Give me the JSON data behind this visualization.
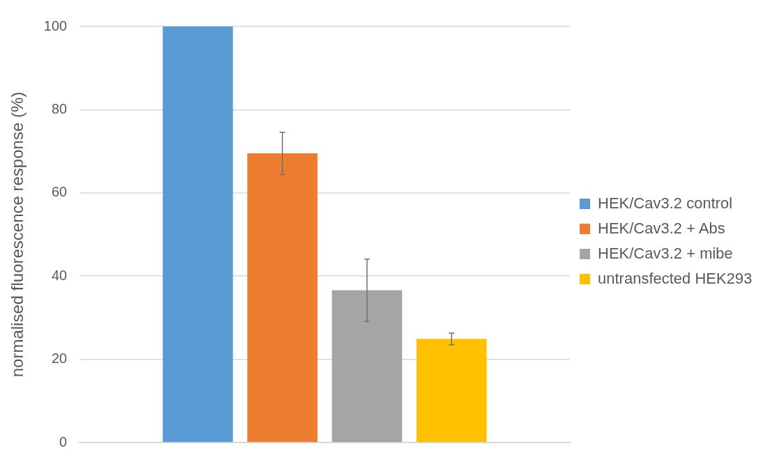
{
  "chart_data": {
    "type": "bar",
    "ylabel": "normalised fluorescence response (%)",
    "categories": [
      null
    ],
    "series": [
      {
        "name": "HEK/Cav3.2 control",
        "color": "#5b9bd5",
        "values": [
          100
        ]
      },
      {
        "name": "HEK/Cav3.2 + Abs",
        "color": "#ed7d31",
        "values": [
          69.5
        ],
        "errors": [
          5.1
        ]
      },
      {
        "name": "HEK/Cav3.2 + mibe",
        "color": "#a5a5a5",
        "values": [
          36.6
        ],
        "errors": [
          7.5
        ]
      },
      {
        "name": "untransfected HEK293",
        "color": "#ffc000",
        "values": [
          24.9
        ],
        "errors": [
          1.4
        ]
      }
    ],
    "ylim": [
      0,
      100
    ],
    "yticks": [
      0,
      20,
      40,
      60,
      80,
      100
    ],
    "grid": "y",
    "legend": "right"
  }
}
